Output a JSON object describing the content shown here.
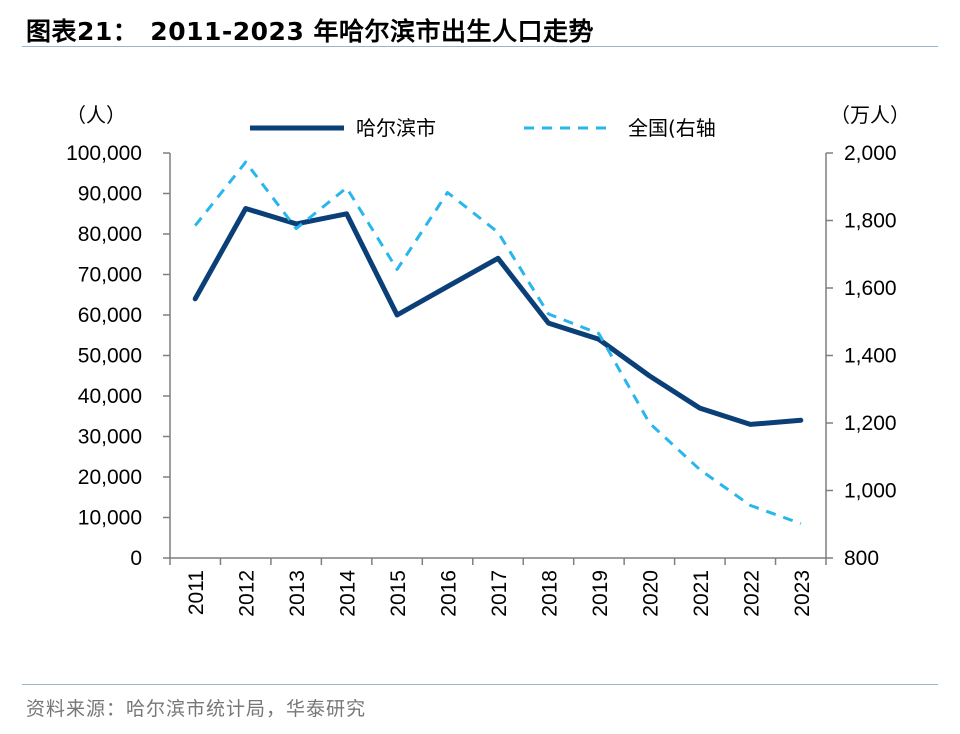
{
  "title": {
    "figure_label": "图表21：",
    "text": "2011-2023 年哈尔滨市出生人口走势"
  },
  "source": "资料来源：哈尔滨市统计局，华泰研究",
  "colors": {
    "harbin": "#0a3f78",
    "national": "#29b6ec",
    "axis": "#7f7f7f",
    "rule": "#9db3cc"
  },
  "chart_data": {
    "type": "line",
    "x": [
      "2011",
      "2012",
      "2013",
      "2014",
      "2015",
      "2016",
      "2017",
      "2018",
      "2019",
      "2020",
      "2021",
      "2022",
      "2023"
    ],
    "left_axis": {
      "unit_label": "（人）",
      "ylim": [
        0,
        100000
      ],
      "ticks": [
        0,
        10000,
        20000,
        30000,
        40000,
        50000,
        60000,
        70000,
        80000,
        90000,
        100000
      ],
      "tick_labels": [
        "0",
        "10,000",
        "20,000",
        "30,000",
        "40,000",
        "50,000",
        "60,000",
        "70,000",
        "80,000",
        "90,000",
        "100,000"
      ]
    },
    "right_axis": {
      "unit_label": "（万人）",
      "ylim": [
        800,
        2000
      ],
      "ticks": [
        800,
        1000,
        1200,
        1400,
        1600,
        1800,
        2000
      ],
      "tick_labels": [
        "800",
        "1,000",
        "1,200",
        "1,400",
        "1,600",
        "1,800",
        "2,000"
      ]
    },
    "series": [
      {
        "name": "哈尔滨市",
        "axis": "left",
        "style": "solid",
        "values": [
          64000,
          86300,
          82500,
          85000,
          60000,
          67000,
          74000,
          58000,
          54000,
          45000,
          37000,
          33000,
          34000
        ]
      },
      {
        "name": "全国(右轴",
        "axis": "right",
        "style": "dashed",
        "values": [
          1785,
          1973,
          1776,
          1897,
          1655,
          1883,
          1765,
          1523,
          1465,
          1200,
          1062,
          956,
          902
        ]
      }
    ],
    "legend_position": "top",
    "grid": false
  }
}
